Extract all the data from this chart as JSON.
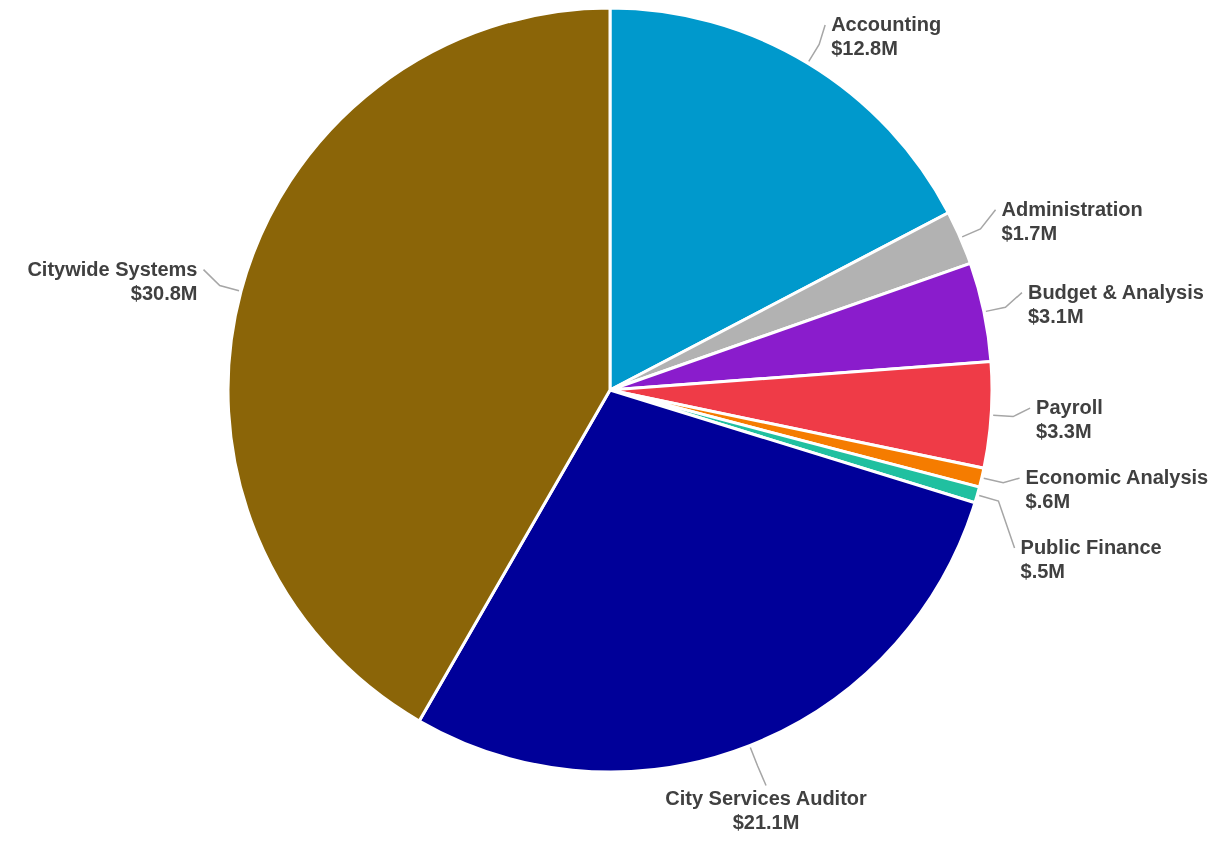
{
  "chart_data": {
    "type": "pie",
    "categories": [
      "Accounting",
      "Administration",
      "Budget & Analysis",
      "Payroll",
      "Economic Analysis",
      "Public Finance",
      "City Services Auditor",
      "Citywide Systems"
    ],
    "values": [
      12.8,
      1.7,
      3.1,
      3.3,
      0.6,
      0.5,
      21.1,
      30.8
    ],
    "value_labels": [
      "$12.8M",
      "$1.7M",
      "$3.1M",
      "$3.3M",
      "$.6M",
      "$.5M",
      "$21.1M",
      "$30.8M"
    ],
    "colors": [
      "#0099cc",
      "#b2b2b2",
      "#8a1ccc",
      "#ef3b47",
      "#f57c00",
      "#20c0a0",
      "#000099",
      "#8b6508"
    ]
  }
}
